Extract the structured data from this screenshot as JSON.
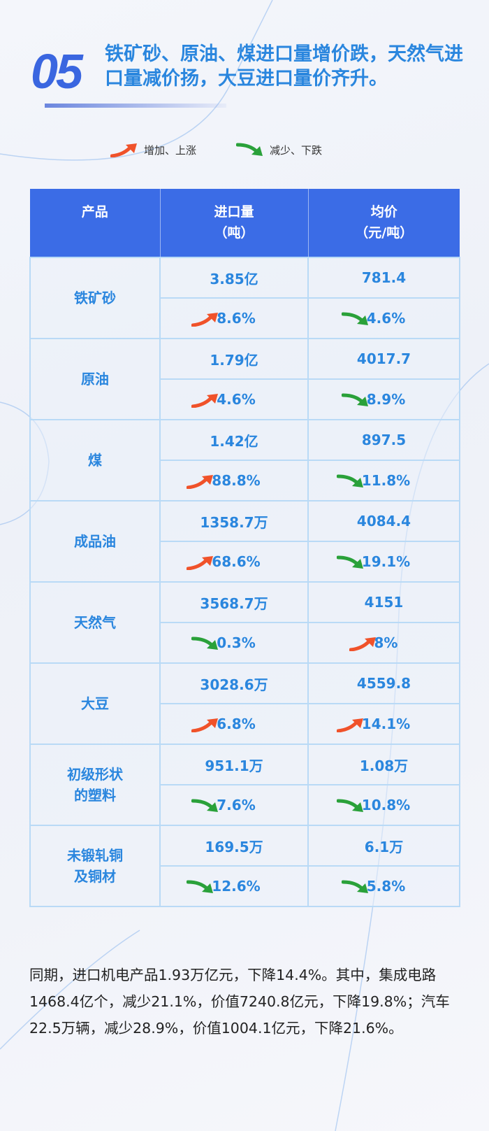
{
  "header": {
    "number": "05",
    "title": "铁矿砂、原油、煤进口量增价跌，天然气进口量减价扬，大豆进口量价齐升。"
  },
  "legend": {
    "up": "增加、上涨",
    "down": "减少、下跌",
    "up_color": "#f0522a",
    "down_color": "#2aa13a"
  },
  "table": {
    "headers": [
      {
        "label": "产品",
        "unit": ""
      },
      {
        "label": "进口量",
        "unit": "（吨）"
      },
      {
        "label": "均价",
        "unit": "（元/吨）"
      }
    ],
    "rows": [
      {
        "product": "铁矿砂",
        "volume": "3.85亿",
        "volume_change": "8.6%",
        "volume_dir": "up",
        "price": "781.4",
        "price_change": "4.6%",
        "price_dir": "down"
      },
      {
        "product": "原油",
        "volume": "1.79亿",
        "volume_change": "4.6%",
        "volume_dir": "up",
        "price": "4017.7",
        "price_change": "8.9%",
        "price_dir": "down"
      },
      {
        "product": "煤",
        "volume": "1.42亿",
        "volume_change": "88.8%",
        "volume_dir": "up",
        "price": "897.5",
        "price_change": "11.8%",
        "price_dir": "down"
      },
      {
        "product": "成品油",
        "volume": "1358.7万",
        "volume_change": "68.6%",
        "volume_dir": "up",
        "price": "4084.4",
        "price_change": "19.1%",
        "price_dir": "down"
      },
      {
        "product": "天然气",
        "volume": "3568.7万",
        "volume_change": "0.3%",
        "volume_dir": "down",
        "price": "4151",
        "price_change": "8%",
        "price_dir": "up"
      },
      {
        "product": "大豆",
        "volume": "3028.6万",
        "volume_change": "6.8%",
        "volume_dir": "up",
        "price": "4559.8",
        "price_change": "14.1%",
        "price_dir": "up"
      },
      {
        "product": "初级形状的塑料",
        "volume": "951.1万",
        "volume_change": "7.6%",
        "volume_dir": "down",
        "price": "1.08万",
        "price_change": "10.8%",
        "price_dir": "down"
      },
      {
        "product": "未锻轧铜及铜材",
        "volume": "169.5万",
        "volume_change": "12.6%",
        "volume_dir": "down",
        "price": "6.1万",
        "price_change": "5.8%",
        "price_dir": "down"
      }
    ]
  },
  "body_text": "同期，进口机电产品1.93万亿元，下降14.4%。其中，集成电路1468.4亿个，减少21.1%，价值7240.8亿元，下降19.8%；汽车22.5万辆，减少28.9%，价值1004.1亿元，下降21.6%。"
}
